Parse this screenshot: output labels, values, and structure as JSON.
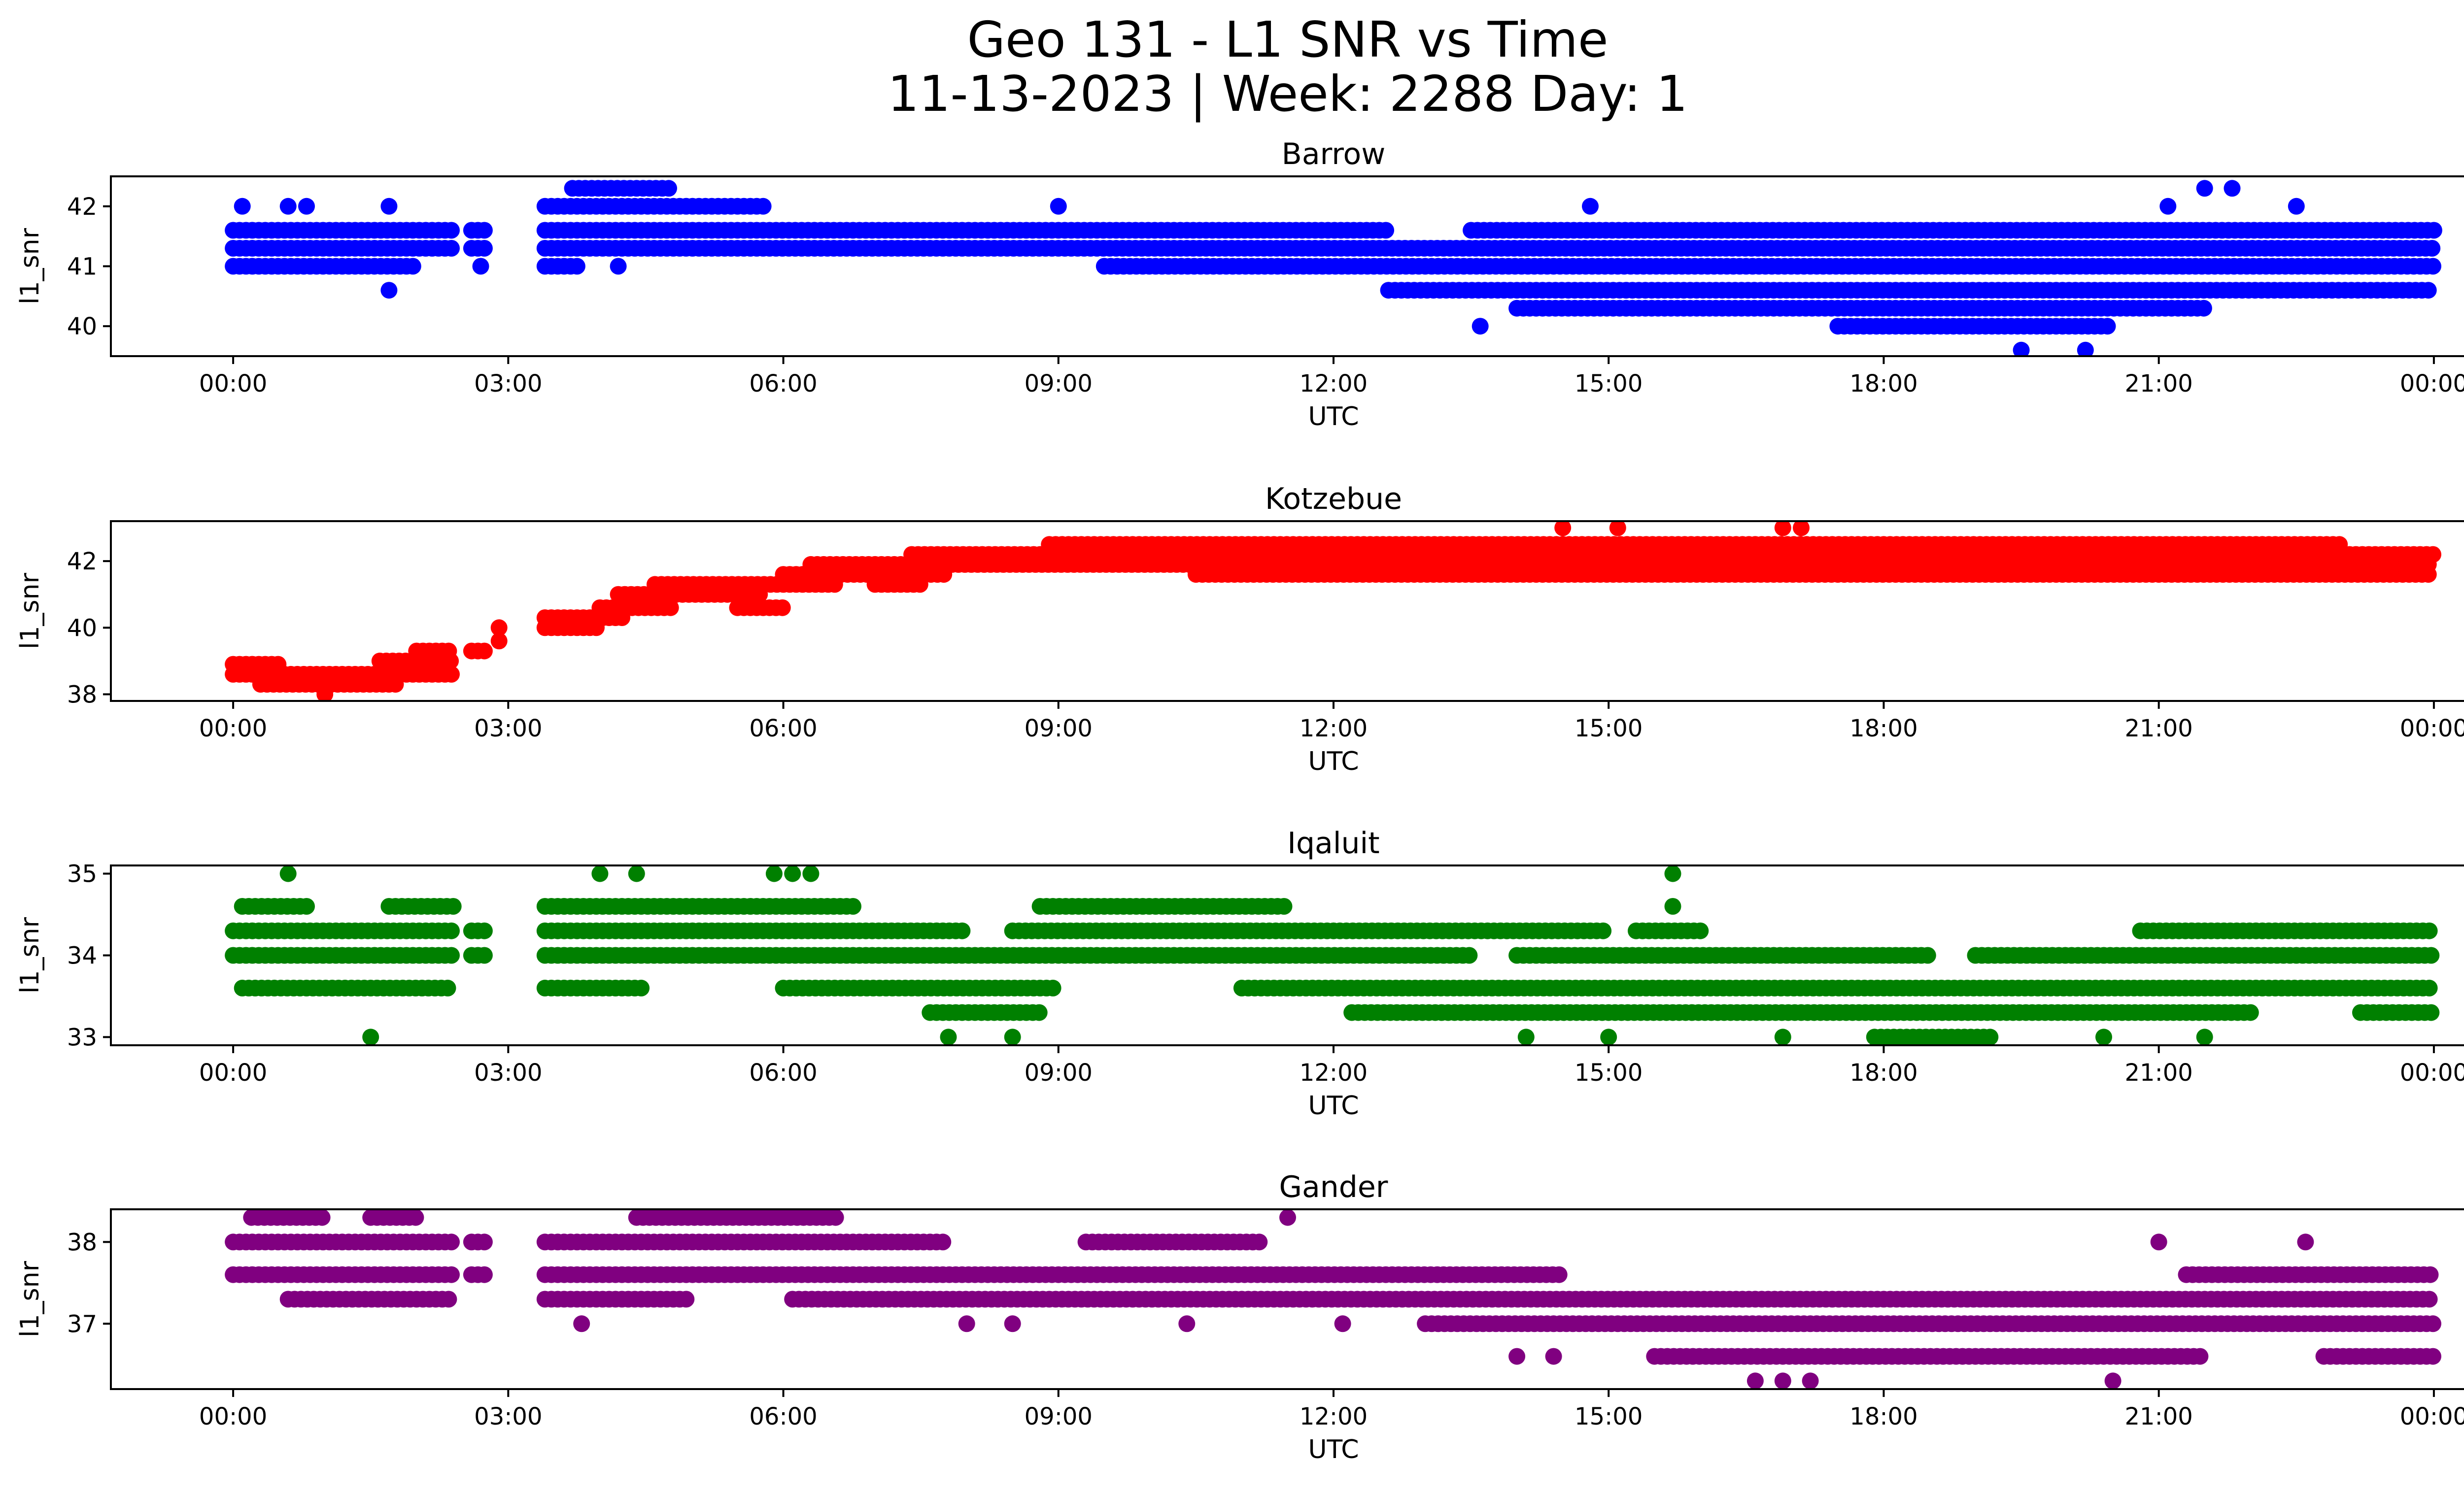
{
  "figure": {
    "title_line1": "Geo 131 - L1 SNR vs Time",
    "title_line2": "11-13-2023 | Week: 2288 Day: 1"
  },
  "chart_data": [
    {
      "type": "scatter",
      "title": "Barrow",
      "xlabel": "UTC",
      "ylabel": "l1_snr",
      "color": "#0000ff",
      "x_unit": "hours UTC",
      "xlim": [
        "00:00",
        "00:00"
      ],
      "x_ticks": [
        "00:00",
        "03:00",
        "06:00",
        "09:00",
        "12:00",
        "15:00",
        "18:00",
        "21:00",
        "00:00"
      ],
      "ylim": [
        39.5,
        42.5
      ],
      "y_ticks": [
        40,
        41,
        42
      ],
      "bands": [
        {
          "y": 41.6,
          "segments": [
            [
              0.0,
              2.4
            ],
            [
              2.6,
              2.8
            ],
            [
              3.4,
              12.6
            ],
            [
              13.5,
              24.0
            ]
          ]
        },
        {
          "y": 41.3,
          "segments": [
            [
              0.0,
              2.4
            ],
            [
              2.6,
              2.8
            ],
            [
              3.4,
              24.0
            ]
          ]
        },
        {
          "y": 41.0,
          "segments": [
            [
              0.0,
              2.0
            ],
            [
              3.4,
              3.8
            ],
            [
              9.5,
              24.0
            ]
          ]
        },
        {
          "y": 40.6,
          "segments": [
            [
              12.6,
              24.0
            ]
          ]
        },
        {
          "y": 40.3,
          "segments": [
            [
              14.0,
              21.5
            ]
          ]
        },
        {
          "y": 42.0,
          "segments": [
            [
              3.4,
              5.8
            ]
          ]
        },
        {
          "y": 42.3,
          "segments": [
            [
              3.7,
              4.8
            ]
          ]
        },
        {
          "y": 40.0,
          "segments": [
            [
              17.5,
              20.5
            ]
          ]
        }
      ],
      "points": [
        [
          0.1,
          42.0
        ],
        [
          0.6,
          42.0
        ],
        [
          0.8,
          42.0
        ],
        [
          1.7,
          42.0
        ],
        [
          1.7,
          40.6
        ],
        [
          2.7,
          41.0
        ],
        [
          4.2,
          41.0
        ],
        [
          9.0,
          42.0
        ],
        [
          13.6,
          40.0
        ],
        [
          14.8,
          42.0
        ],
        [
          19.5,
          39.6
        ],
        [
          20.2,
          39.6
        ],
        [
          21.5,
          42.3
        ],
        [
          21.8,
          42.3
        ],
        [
          21.1,
          42.0
        ],
        [
          22.5,
          42.0
        ]
      ]
    },
    {
      "type": "scatter",
      "title": "Kotzebue",
      "xlabel": "UTC",
      "ylabel": "l1_snr",
      "color": "#ff0000",
      "x_unit": "hours UTC",
      "xlim": [
        "00:00",
        "00:00"
      ],
      "x_ticks": [
        "00:00",
        "03:00",
        "06:00",
        "09:00",
        "12:00",
        "15:00",
        "18:00",
        "21:00",
        "00:00"
      ],
      "ylim": [
        37.8,
        43.2
      ],
      "y_ticks": [
        38,
        40,
        42
      ],
      "bands": [
        {
          "y": 38.9,
          "segments": [
            [
              0.0,
              0.5
            ]
          ]
        },
        {
          "y": 38.6,
          "segments": [
            [
              0.0,
              2.4
            ]
          ]
        },
        {
          "y": 38.3,
          "segments": [
            [
              0.3,
              1.8
            ]
          ]
        },
        {
          "y": 39.0,
          "segments": [
            [
              1.6,
              2.4
            ]
          ]
        },
        {
          "y": 39.3,
          "segments": [
            [
              2.0,
              2.4
            ],
            [
              2.6,
              2.8
            ]
          ]
        },
        {
          "y": 40.0,
          "segments": [
            [
              3.4,
              4.0
            ]
          ]
        },
        {
          "y": 40.3,
          "segments": [
            [
              3.4,
              4.3
            ]
          ]
        },
        {
          "y": 40.6,
          "segments": [
            [
              4.0,
              4.8
            ],
            [
              5.5,
              6.0
            ]
          ]
        },
        {
          "y": 41.0,
          "segments": [
            [
              4.2,
              5.8
            ]
          ]
        },
        {
          "y": 41.3,
          "segments": [
            [
              4.6,
              6.6
            ],
            [
              7.0,
              7.5
            ]
          ]
        },
        {
          "y": 41.6,
          "segments": [
            [
              6.0,
              7.8
            ]
          ]
        },
        {
          "y": 41.9,
          "segments": [
            [
              6.3,
              24.0
            ]
          ]
        },
        {
          "y": 42.2,
          "segments": [
            [
              7.4,
              24.0
            ]
          ]
        },
        {
          "y": 42.5,
          "segments": [
            [
              8.9,
              23.0
            ]
          ]
        },
        {
          "y": 41.6,
          "segments": [
            [
              10.5,
              24.0
            ]
          ]
        }
      ],
      "points": [
        [
          2.9,
          39.6
        ],
        [
          2.9,
          40.0
        ],
        [
          1.0,
          38.0
        ],
        [
          14.5,
          43.0
        ],
        [
          15.1,
          43.0
        ],
        [
          16.9,
          43.0
        ],
        [
          17.1,
          43.0
        ]
      ]
    },
    {
      "type": "scatter",
      "title": "Iqaluit",
      "xlabel": "UTC",
      "ylabel": "l1_snr",
      "color": "#008000",
      "x_unit": "hours UTC",
      "xlim": [
        "00:00",
        "00:00"
      ],
      "x_ticks": [
        "00:00",
        "03:00",
        "06:00",
        "09:00",
        "12:00",
        "15:00",
        "18:00",
        "21:00",
        "00:00"
      ],
      "ylim": [
        32.9,
        35.1
      ],
      "y_ticks": [
        33,
        34,
        35
      ],
      "bands": [
        {
          "y": 34.3,
          "segments": [
            [
              0.0,
              2.4
            ],
            [
              2.6,
              2.8
            ],
            [
              3.4,
              8.0
            ],
            [
              8.5,
              15.0
            ],
            [
              15.3,
              16.0
            ],
            [
              20.8,
              24.0
            ]
          ]
        },
        {
          "y": 34.0,
          "segments": [
            [
              0.0,
              2.4
            ],
            [
              2.6,
              2.8
            ],
            [
              3.4,
              13.5
            ],
            [
              14.0,
              18.5
            ],
            [
              19.0,
              24.0
            ]
          ]
        },
        {
          "y": 33.6,
          "segments": [
            [
              0.1,
              2.4
            ],
            [
              3.4,
              4.5
            ],
            [
              6.0,
              9.0
            ],
            [
              11.0,
              24.0
            ]
          ]
        },
        {
          "y": 33.3,
          "segments": [
            [
              7.6,
              8.8
            ],
            [
              12.2,
              22.0
            ],
            [
              23.2,
              24.0
            ]
          ]
        },
        {
          "y": 34.6,
          "segments": [
            [
              0.1,
              0.8
            ],
            [
              1.7,
              2.4
            ],
            [
              3.4,
              6.8
            ],
            [
              8.8,
              11.5
            ]
          ]
        },
        {
          "y": 33.0,
          "segments": [
            [
              17.9,
              19.2
            ]
          ]
        }
      ],
      "points": [
        [
          0.6,
          35.0
        ],
        [
          4.0,
          35.0
        ],
        [
          4.4,
          35.0
        ],
        [
          5.9,
          35.0
        ],
        [
          6.1,
          35.0
        ],
        [
          6.3,
          35.0
        ],
        [
          15.7,
          35.0
        ],
        [
          15.7,
          34.6
        ],
        [
          1.5,
          33.0
        ],
        [
          7.8,
          33.0
        ],
        [
          8.5,
          33.0
        ],
        [
          14.1,
          33.0
        ],
        [
          15.0,
          33.0
        ],
        [
          16.9,
          33.0
        ],
        [
          20.4,
          33.0
        ],
        [
          21.5,
          33.0
        ]
      ]
    },
    {
      "type": "scatter",
      "title": "Gander",
      "xlabel": "UTC",
      "ylabel": "l1_snr",
      "color": "#800080",
      "x_unit": "hours UTC",
      "xlim": [
        "00:00",
        "00:00"
      ],
      "x_ticks": [
        "00:00",
        "03:00",
        "06:00",
        "09:00",
        "12:00",
        "15:00",
        "18:00",
        "21:00",
        "00:00"
      ],
      "ylim": [
        36.2,
        38.4
      ],
      "y_ticks": [
        37,
        38
      ],
      "bands": [
        {
          "y": 38.0,
          "segments": [
            [
              0.0,
              2.4
            ],
            [
              2.6,
              2.8
            ],
            [
              3.4,
              7.8
            ],
            [
              9.3,
              11.2
            ]
          ]
        },
        {
          "y": 37.6,
          "segments": [
            [
              0.0,
              2.4
            ],
            [
              2.6,
              2.8
            ],
            [
              3.4,
              14.5
            ],
            [
              21.3,
              24.0
            ]
          ]
        },
        {
          "y": 37.3,
          "segments": [
            [
              0.6,
              2.4
            ],
            [
              3.4,
              5.0
            ],
            [
              6.1,
              24.0
            ]
          ]
        },
        {
          "y": 37.0,
          "segments": [
            [
              13.0,
              24.0
            ]
          ]
        },
        {
          "y": 36.6,
          "segments": [
            [
              15.5,
              21.5
            ],
            [
              22.8,
              24.0
            ]
          ]
        },
        {
          "y": 38.3,
          "segments": [
            [
              0.2,
              1.0
            ],
            [
              1.5,
              2.0
            ],
            [
              4.4,
              6.6
            ]
          ]
        }
      ],
      "points": [
        [
          3.8,
          37.0
        ],
        [
          8.0,
          37.0
        ],
        [
          8.5,
          37.0
        ],
        [
          10.4,
          37.0
        ],
        [
          12.1,
          37.0
        ],
        [
          11.5,
          38.3
        ],
        [
          20.5,
          36.3
        ],
        [
          16.6,
          36.3
        ],
        [
          16.9,
          36.3
        ],
        [
          17.2,
          36.3
        ],
        [
          21.0,
          38.0
        ],
        [
          22.6,
          38.0
        ],
        [
          14.0,
          36.6
        ],
        [
          14.4,
          36.6
        ]
      ]
    }
  ]
}
